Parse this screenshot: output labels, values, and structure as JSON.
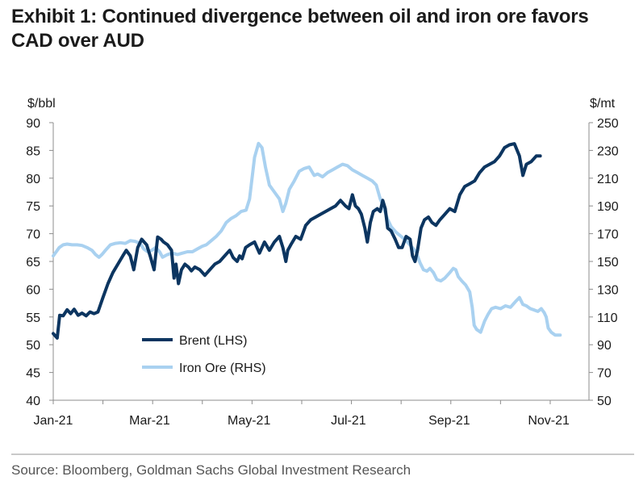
{
  "title": "Exhibit 1: Continued divergence between oil and iron ore favors CAD over AUD",
  "source": "Source: Bloomberg, Goldman Sachs Global Investment Research",
  "colors": {
    "brent": "#0c3560",
    "iron_ore": "#a9d1f0",
    "axis": "#8c8c8c",
    "text": "#1a1a1a"
  },
  "chart_data": {
    "type": "line",
    "x_unit": "month index (0 = Jan-21, 1 = Feb-21, ...)",
    "xlim": [
      0,
      10.78
    ],
    "x_ticks": [
      {
        "label": "Jan-21",
        "value": 0
      },
      {
        "label": "Mar-21",
        "value": 1.94
      },
      {
        "label": "May-21",
        "value": 3.94
      },
      {
        "label": "Jul-21",
        "value": 5.94
      },
      {
        "label": "Sep-21",
        "value": 7.97
      },
      {
        "label": "Nov-21",
        "value": 9.97
      }
    ],
    "left_axis": {
      "label": "$/bbl",
      "min": 40,
      "max": 90,
      "ticks": [
        40,
        45,
        50,
        55,
        60,
        65,
        70,
        75,
        80,
        85,
        90
      ]
    },
    "right_axis": {
      "label": "$/mt",
      "min": 50,
      "max": 250,
      "ticks": [
        50,
        70,
        90,
        110,
        130,
        150,
        170,
        190,
        210,
        230,
        250
      ]
    },
    "legend": {
      "position": "lower-left"
    },
    "series": [
      {
        "name": "Brent (LHS)",
        "axis": "left",
        "points": [
          [
            0.0,
            52.0
          ],
          [
            0.08,
            51.2
          ],
          [
            0.13,
            55.3
          ],
          [
            0.2,
            55.2
          ],
          [
            0.28,
            56.3
          ],
          [
            0.35,
            55.6
          ],
          [
            0.42,
            56.4
          ],
          [
            0.5,
            55.3
          ],
          [
            0.58,
            55.7
          ],
          [
            0.66,
            55.2
          ],
          [
            0.74,
            55.9
          ],
          [
            0.82,
            55.6
          ],
          [
            0.9,
            55.9
          ],
          [
            1.0,
            58.5
          ],
          [
            1.1,
            61.0
          ],
          [
            1.2,
            63.0
          ],
          [
            1.3,
            64.5
          ],
          [
            1.4,
            66.0
          ],
          [
            1.47,
            67.0
          ],
          [
            1.55,
            66.0
          ],
          [
            1.62,
            63.5
          ],
          [
            1.7,
            67.5
          ],
          [
            1.78,
            69.0
          ],
          [
            1.88,
            68.0
          ],
          [
            1.95,
            66.0
          ],
          [
            2.03,
            63.5
          ],
          [
            2.1,
            69.4
          ],
          [
            2.17,
            69.0
          ],
          [
            2.22,
            68.5
          ],
          [
            2.3,
            68.0
          ],
          [
            2.38,
            67.0
          ],
          [
            2.43,
            62.0
          ],
          [
            2.47,
            64.5
          ],
          [
            2.52,
            61.0
          ],
          [
            2.58,
            63.5
          ],
          [
            2.65,
            64.5
          ],
          [
            2.72,
            64.0
          ],
          [
            2.78,
            63.3
          ],
          [
            2.85,
            64.0
          ],
          [
            2.95,
            63.5
          ],
          [
            3.05,
            62.5
          ],
          [
            3.15,
            63.5
          ],
          [
            3.25,
            64.5
          ],
          [
            3.35,
            65.0
          ],
          [
            3.45,
            66.0
          ],
          [
            3.55,
            67.0
          ],
          [
            3.62,
            65.7
          ],
          [
            3.7,
            65.0
          ],
          [
            3.75,
            66.0
          ],
          [
            3.8,
            65.5
          ],
          [
            3.87,
            67.5
          ],
          [
            3.95,
            68.0
          ],
          [
            4.05,
            68.5
          ],
          [
            4.15,
            66.5
          ],
          [
            4.25,
            68.5
          ],
          [
            4.35,
            67.0
          ],
          [
            4.45,
            68.5
          ],
          [
            4.55,
            69.5
          ],
          [
            4.62,
            67.5
          ],
          [
            4.68,
            65.0
          ],
          [
            4.72,
            67.0
          ],
          [
            4.78,
            68.0
          ],
          [
            4.88,
            69.5
          ],
          [
            4.98,
            69.0
          ],
          [
            5.08,
            71.5
          ],
          [
            5.18,
            72.5
          ],
          [
            5.28,
            73.0
          ],
          [
            5.38,
            73.5
          ],
          [
            5.48,
            74.0
          ],
          [
            5.58,
            74.5
          ],
          [
            5.68,
            75.0
          ],
          [
            5.78,
            76.0
          ],
          [
            5.88,
            75.0
          ],
          [
            5.95,
            74.5
          ],
          [
            6.02,
            77.0
          ],
          [
            6.08,
            75.0
          ],
          [
            6.14,
            74.5
          ],
          [
            6.2,
            73.5
          ],
          [
            6.27,
            71.0
          ],
          [
            6.32,
            68.5
          ],
          [
            6.38,
            72.0
          ],
          [
            6.44,
            74.0
          ],
          [
            6.52,
            74.5
          ],
          [
            6.58,
            74.0
          ],
          [
            6.63,
            76.0
          ],
          [
            6.68,
            74.5
          ],
          [
            6.73,
            71.0
          ],
          [
            6.8,
            70.5
          ],
          [
            6.88,
            69.0
          ],
          [
            6.95,
            67.5
          ],
          [
            7.02,
            67.5
          ],
          [
            7.1,
            69.5
          ],
          [
            7.18,
            69.0
          ],
          [
            7.23,
            66.0
          ],
          [
            7.28,
            65.0
          ],
          [
            7.33,
            67.0
          ],
          [
            7.4,
            71.0
          ],
          [
            7.47,
            72.5
          ],
          [
            7.55,
            73.0
          ],
          [
            7.62,
            72.0
          ],
          [
            7.7,
            71.5
          ],
          [
            7.78,
            72.5
          ],
          [
            7.88,
            73.5
          ],
          [
            7.98,
            74.5
          ],
          [
            8.08,
            74.0
          ],
          [
            8.18,
            77.0
          ],
          [
            8.28,
            78.5
          ],
          [
            8.38,
            79.0
          ],
          [
            8.48,
            79.5
          ],
          [
            8.58,
            81.0
          ],
          [
            8.68,
            82.0
          ],
          [
            8.78,
            82.5
          ],
          [
            8.88,
            83.0
          ],
          [
            8.98,
            84.0
          ],
          [
            9.08,
            85.5
          ],
          [
            9.18,
            86.0
          ],
          [
            9.28,
            86.2
          ],
          [
            9.38,
            84.0
          ],
          [
            9.45,
            80.5
          ],
          [
            9.52,
            82.5
          ],
          [
            9.62,
            83.0
          ],
          [
            9.72,
            84.0
          ],
          [
            9.8,
            84.0
          ]
        ]
      },
      {
        "name": "Iron Ore (RHS)",
        "axis": "right",
        "points": [
          [
            0.0,
            154.0
          ],
          [
            0.06,
            157.0
          ],
          [
            0.12,
            160.0
          ],
          [
            0.2,
            162.0
          ],
          [
            0.28,
            162.5
          ],
          [
            0.38,
            162.0
          ],
          [
            0.48,
            162.0
          ],
          [
            0.58,
            161.5
          ],
          [
            0.68,
            160.0
          ],
          [
            0.78,
            158.0
          ],
          [
            0.85,
            155.0
          ],
          [
            0.92,
            153.0
          ],
          [
            0.98,
            155.0
          ],
          [
            1.05,
            158.0
          ],
          [
            1.15,
            162.0
          ],
          [
            1.25,
            163.0
          ],
          [
            1.35,
            163.5
          ],
          [
            1.45,
            163.0
          ],
          [
            1.55,
            165.0
          ],
          [
            1.65,
            164.5
          ],
          [
            1.75,
            163.0
          ],
          [
            1.82,
            159.0
          ],
          [
            1.9,
            157.0
          ],
          [
            1.98,
            158.0
          ],
          [
            2.06,
            160.0
          ],
          [
            2.14,
            157.0
          ],
          [
            2.2,
            153.0
          ],
          [
            2.3,
            155.0
          ],
          [
            2.4,
            156.0
          ],
          [
            2.5,
            155.0
          ],
          [
            2.6,
            156.0
          ],
          [
            2.7,
            157.0
          ],
          [
            2.8,
            157.0
          ],
          [
            2.9,
            159.0
          ],
          [
            3.0,
            161.0
          ],
          [
            3.08,
            162.0
          ],
          [
            3.18,
            165.0
          ],
          [
            3.28,
            168.0
          ],
          [
            3.38,
            172.0
          ],
          [
            3.48,
            178.0
          ],
          [
            3.58,
            181.0
          ],
          [
            3.68,
            183.0
          ],
          [
            3.78,
            186.0
          ],
          [
            3.88,
            187.0
          ],
          [
            3.95,
            195.0
          ],
          [
            4.05,
            225.0
          ],
          [
            4.13,
            235.0
          ],
          [
            4.2,
            232.0
          ],
          [
            4.27,
            218.0
          ],
          [
            4.35,
            205.0
          ],
          [
            4.45,
            200.0
          ],
          [
            4.55,
            195.0
          ],
          [
            4.62,
            186.0
          ],
          [
            4.68,
            192.0
          ],
          [
            4.75,
            202.0
          ],
          [
            4.85,
            208.0
          ],
          [
            4.95,
            215.0
          ],
          [
            5.05,
            217.0
          ],
          [
            5.15,
            218.0
          ],
          [
            5.25,
            212.0
          ],
          [
            5.32,
            213.0
          ],
          [
            5.42,
            211.0
          ],
          [
            5.52,
            214.0
          ],
          [
            5.62,
            216.0
          ],
          [
            5.72,
            218.0
          ],
          [
            5.82,
            220.0
          ],
          [
            5.92,
            219.0
          ],
          [
            6.02,
            216.0
          ],
          [
            6.12,
            214.0
          ],
          [
            6.22,
            212.0
          ],
          [
            6.32,
            210.0
          ],
          [
            6.42,
            208.0
          ],
          [
            6.5,
            205.0
          ],
          [
            6.58,
            195.0
          ],
          [
            6.65,
            189.0
          ],
          [
            6.72,
            181.0
          ],
          [
            6.8,
            175.0
          ],
          [
            6.9,
            171.0
          ],
          [
            7.0,
            168.0
          ],
          [
            7.1,
            165.0
          ],
          [
            7.2,
            161.0
          ],
          [
            7.3,
            157.0
          ],
          [
            7.38,
            149.0
          ],
          [
            7.45,
            144.0
          ],
          [
            7.52,
            143.0
          ],
          [
            7.58,
            145.0
          ],
          [
            7.65,
            142.0
          ],
          [
            7.72,
            137.0
          ],
          [
            7.8,
            136.0
          ],
          [
            7.88,
            138.0
          ],
          [
            7.98,
            142.0
          ],
          [
            8.05,
            145.0
          ],
          [
            8.1,
            144.0
          ],
          [
            8.15,
            139.0
          ],
          [
            8.22,
            136.0
          ],
          [
            8.3,
            133.0
          ],
          [
            8.38,
            128.0
          ],
          [
            8.43,
            117.0
          ],
          [
            8.47,
            104.0
          ],
          [
            8.52,
            101.0
          ],
          [
            8.6,
            99.0
          ],
          [
            8.68,
            107.0
          ],
          [
            8.75,
            112.0
          ],
          [
            8.82,
            116.0
          ],
          [
            8.9,
            117.0
          ],
          [
            9.0,
            116.0
          ],
          [
            9.1,
            118.0
          ],
          [
            9.2,
            117.0
          ],
          [
            9.3,
            121.0
          ],
          [
            9.38,
            124.0
          ],
          [
            9.45,
            119.0
          ],
          [
            9.52,
            118.0
          ],
          [
            9.6,
            116.0
          ],
          [
            9.68,
            115.0
          ],
          [
            9.75,
            114.0
          ],
          [
            9.82,
            116.0
          ],
          [
            9.88,
            113.0
          ],
          [
            9.92,
            110.0
          ],
          [
            9.96,
            102.0
          ],
          [
            10.02,
            99.0
          ],
          [
            10.1,
            97.0
          ],
          [
            10.2,
            97.0
          ]
        ]
      }
    ]
  }
}
